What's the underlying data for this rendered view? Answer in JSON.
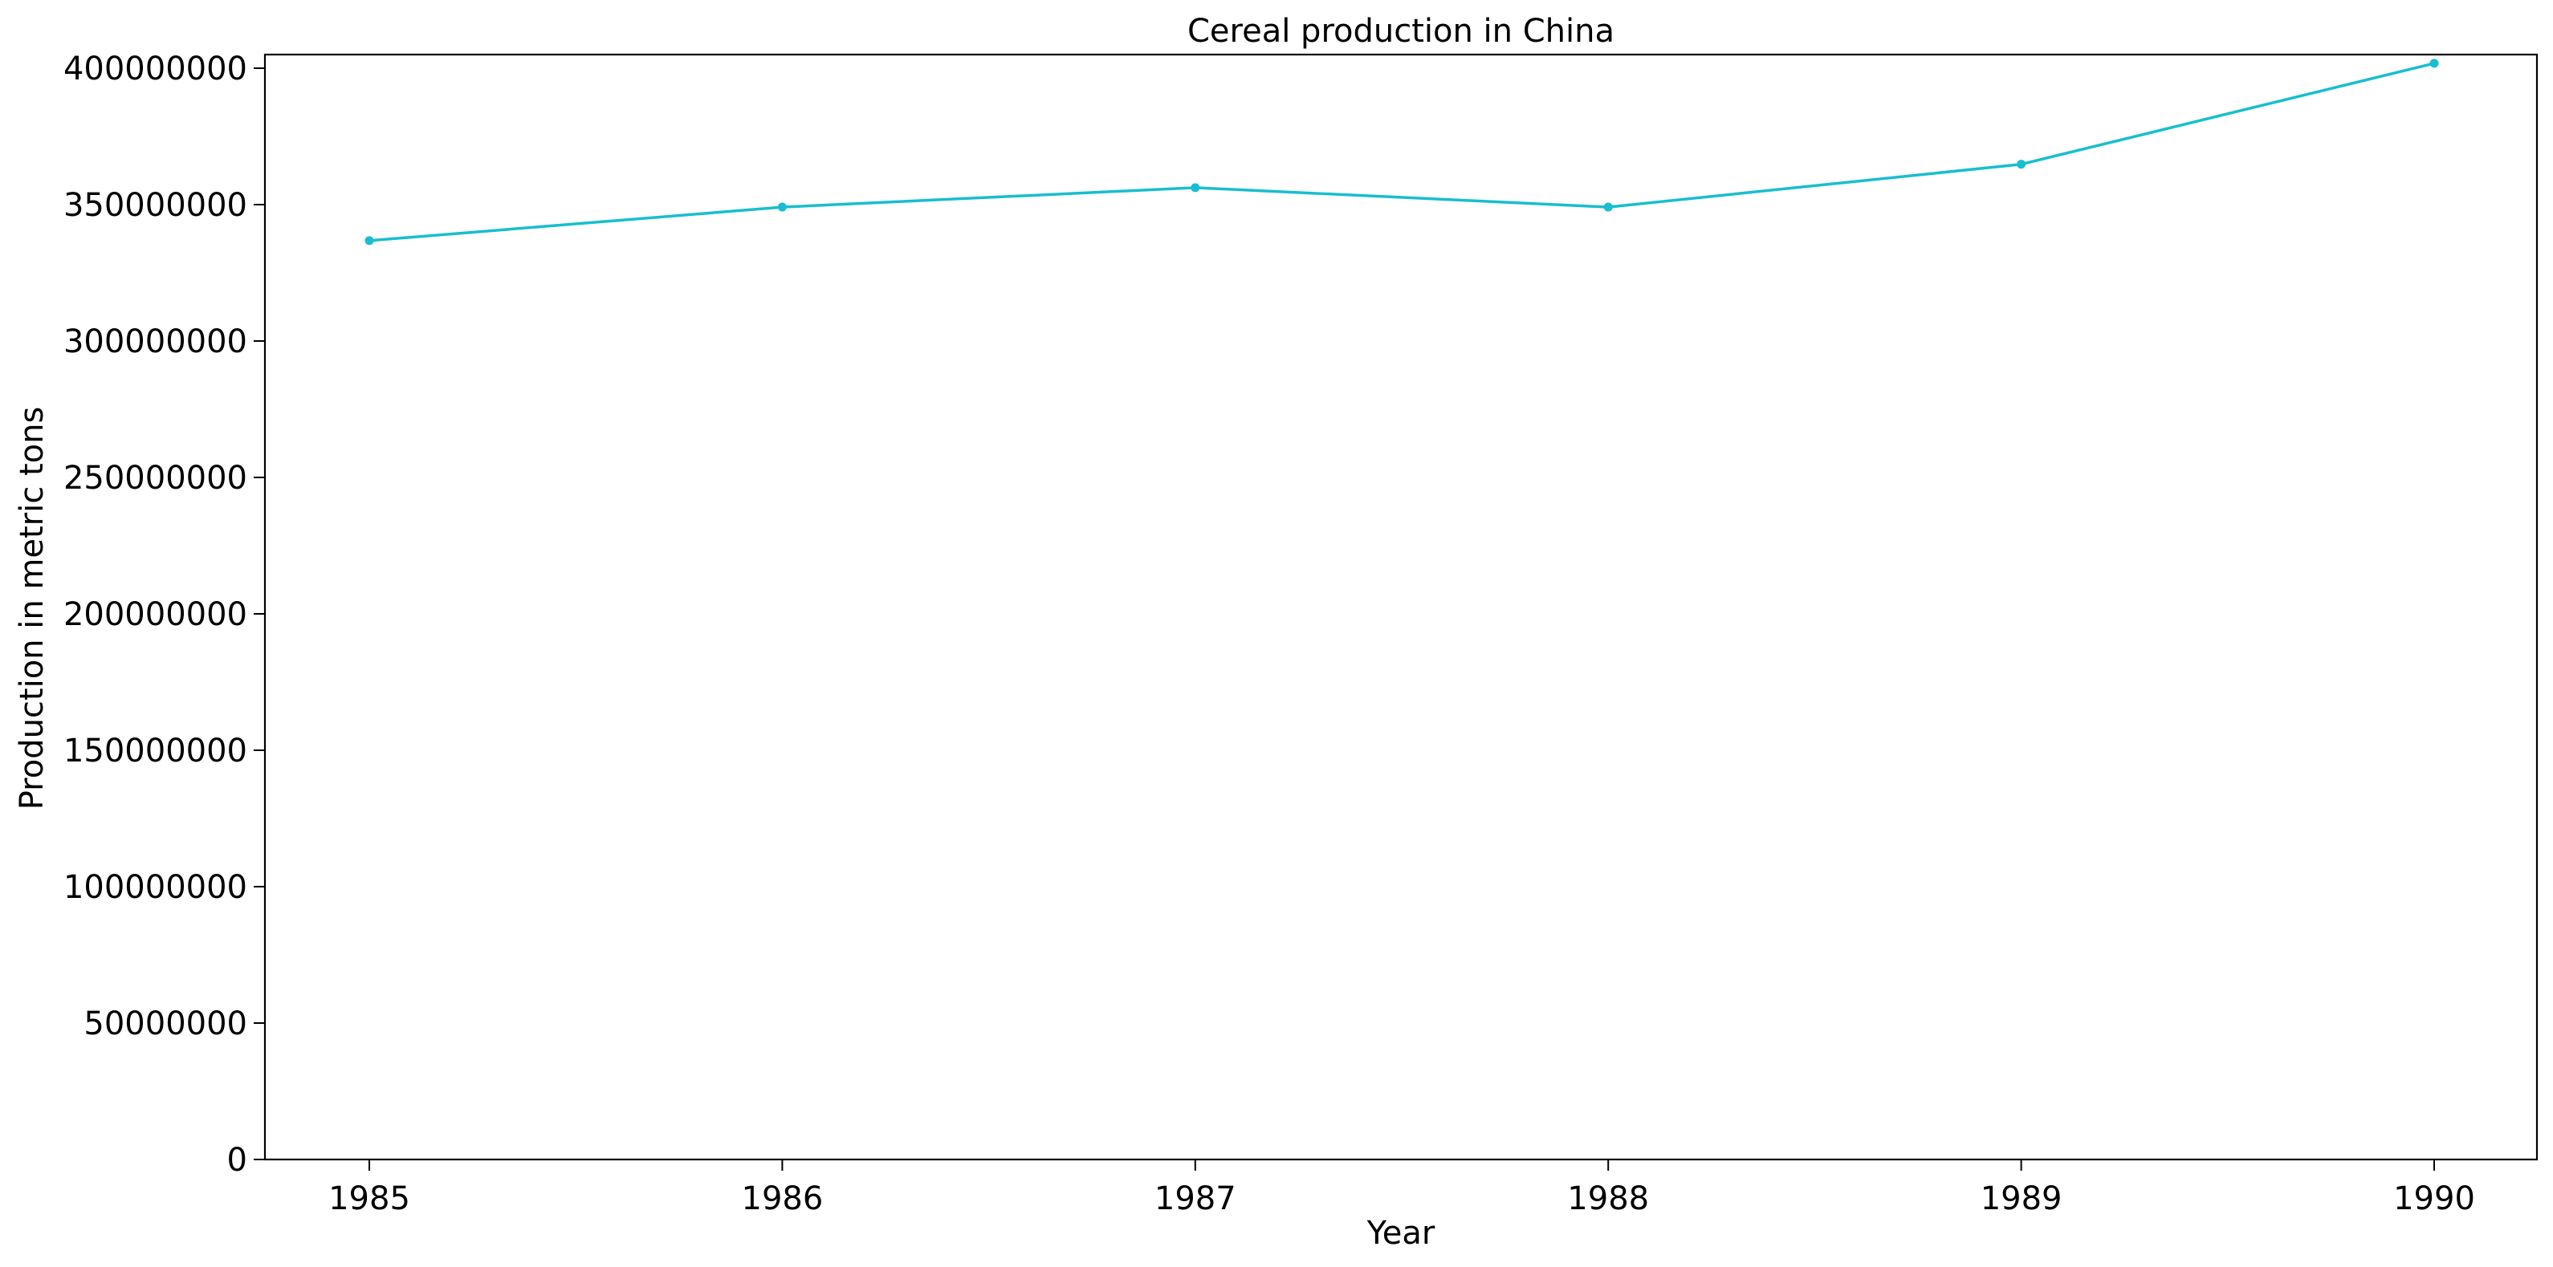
{
  "chart_data": {
    "type": "line",
    "title": "Cereal production in China",
    "xlabel": "Year",
    "ylabel": "Production in metric tons",
    "x": [
      1985,
      1986,
      1987,
      1988,
      1989,
      1990
    ],
    "x_tick_labels": [
      "1985",
      "1986",
      "1987",
      "1988",
      "1989",
      "1990"
    ],
    "series": [
      {
        "values": [
          336800000,
          349100000,
          356200000,
          349100000,
          364800000,
          401800000
        ],
        "color": "#17becf",
        "marker": "circle"
      }
    ],
    "ylim": [
      0,
      405000000
    ],
    "y_ticks": [
      0,
      50000000,
      100000000,
      150000000,
      200000000,
      250000000,
      300000000,
      350000000,
      400000000
    ],
    "y_tick_labels": [
      "0",
      "50000000",
      "100000000",
      "150000000",
      "200000000",
      "250000000",
      "300000000",
      "350000000",
      "400000000"
    ],
    "grid": false,
    "legend": "none"
  }
}
